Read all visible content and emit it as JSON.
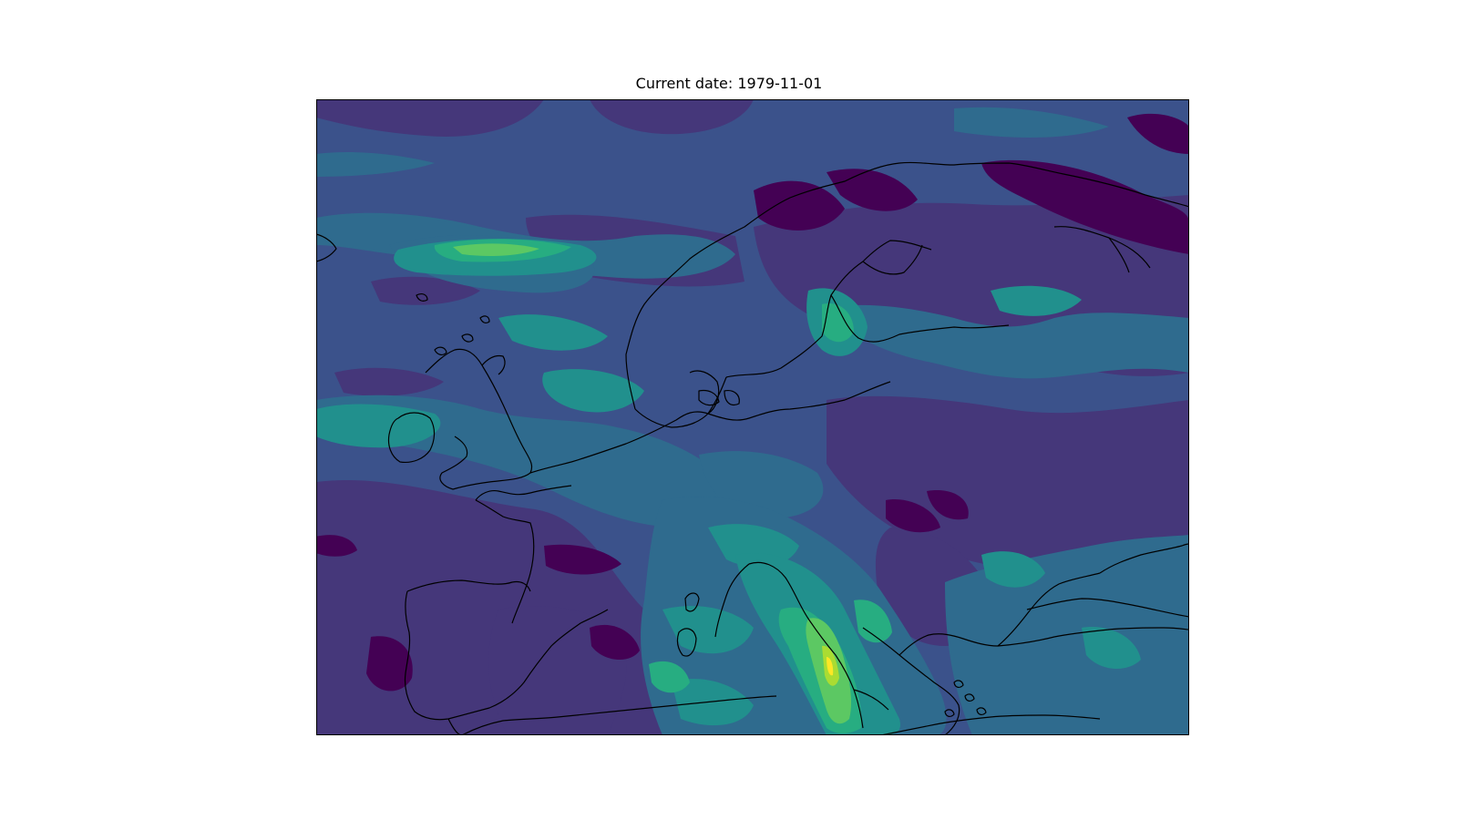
{
  "map": {
    "title": "Current date: 1979-11-01",
    "colormap": "viridis",
    "palette": {
      "level_0": "#440154",
      "level_1": "#45377a",
      "level_2": "#3b528b",
      "level_3": "#2f6b8e",
      "level_4": "#21908d",
      "level_5": "#27ad81",
      "level_6": "#5cc863",
      "level_7": "#aadc32",
      "level_8": "#fde725"
    },
    "coastline_color": "#000000",
    "frame_color": "#000000",
    "background_color": "#ffffff"
  }
}
